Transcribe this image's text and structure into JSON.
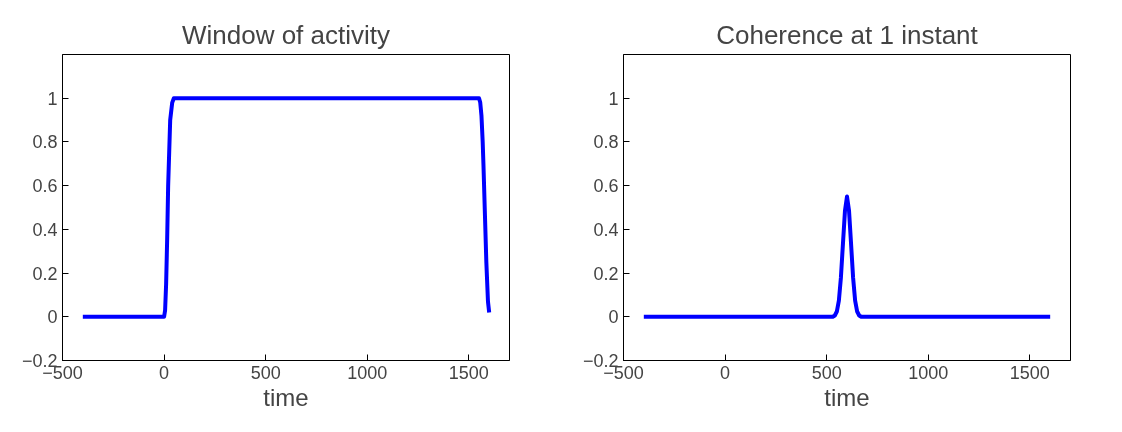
{
  "chart_data": [
    {
      "type": "line",
      "title": "Window of activity",
      "xlabel": "time",
      "xlim": [
        -500,
        1700
      ],
      "ylim": [
        -0.2,
        1.2
      ],
      "xticks": [
        -500,
        0,
        500,
        1000,
        1500
      ],
      "yticks": [
        -0.2,
        0,
        0.2,
        0.4,
        0.6,
        0.8,
        1
      ],
      "grid": false,
      "line_style": "solid",
      "series": [
        {
          "color": "#0000ff",
          "x": [
            -400,
            0,
            5,
            10,
            15,
            20,
            30,
            40,
            48,
            500,
            1000,
            1550,
            1556,
            1562,
            1568,
            1572,
            1578,
            1586,
            1594,
            1600
          ],
          "values": [
            0,
            0,
            0.03,
            0.15,
            0.35,
            0.6,
            0.9,
            0.98,
            1,
            1,
            1,
            1,
            0.98,
            0.92,
            0.8,
            0.69,
            0.5,
            0.25,
            0.07,
            0.02
          ]
        }
      ]
    },
    {
      "type": "line",
      "title": "Coherence at 1 instant",
      "xlabel": "time",
      "xlim": [
        -500,
        1700
      ],
      "ylim": [
        -0.2,
        1.2
      ],
      "xticks": [
        -500,
        0,
        500,
        1000,
        1500
      ],
      "yticks": [
        -0.2,
        0,
        0.2,
        0.4,
        0.6,
        0.8,
        1
      ],
      "grid": false,
      "line_style": "solid",
      "series": [
        {
          "color": "#0000ff",
          "x": [
            -400,
            530,
            540,
            550,
            560,
            570,
            580,
            590,
            600,
            610,
            620,
            630,
            640,
            650,
            660,
            670,
            1600
          ],
          "values": [
            0,
            0,
            0.006,
            0.024,
            0.074,
            0.179,
            0.334,
            0.485,
            0.55,
            0.485,
            0.334,
            0.179,
            0.074,
            0.024,
            0.006,
            0,
            0
          ]
        }
      ]
    }
  ]
}
